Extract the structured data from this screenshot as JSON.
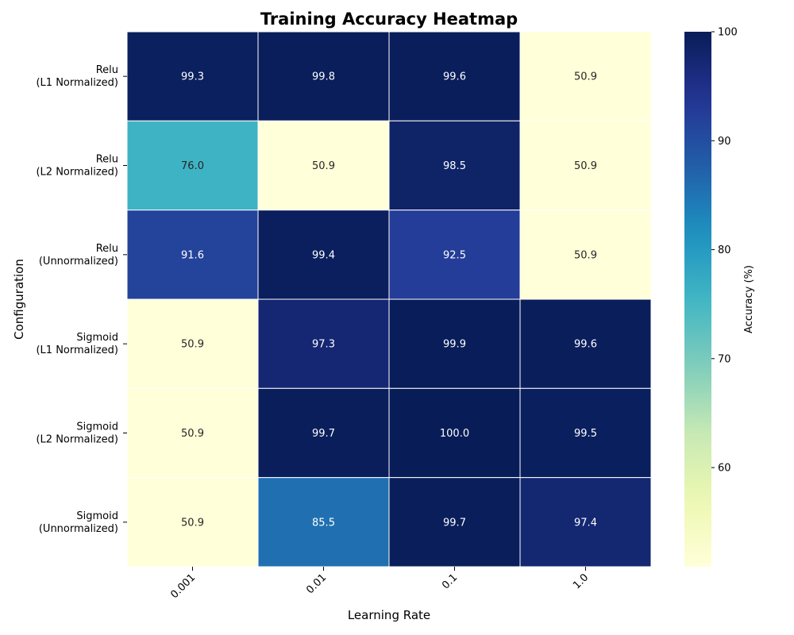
{
  "chart_data": {
    "type": "heatmap",
    "title": "Training Accuracy Heatmap",
    "xlabel": "Learning Rate",
    "ylabel": "Configuration",
    "x_categories": [
      "0.001",
      "0.01",
      "0.1",
      "1.0"
    ],
    "y_categories": [
      [
        "Relu",
        "(L1 Normalized)"
      ],
      [
        "Relu",
        "(L2 Normalized)"
      ],
      [
        "Relu",
        "(Unnormalized)"
      ],
      [
        "Sigmoid",
        "(L1 Normalized)"
      ],
      [
        "Sigmoid",
        "(L2 Normalized)"
      ],
      [
        "Sigmoid",
        "(Unnormalized)"
      ]
    ],
    "values": [
      [
        99.3,
        99.8,
        99.6,
        50.9
      ],
      [
        76.0,
        50.9,
        98.5,
        50.9
      ],
      [
        91.6,
        99.4,
        92.5,
        50.9
      ],
      [
        50.9,
        97.3,
        99.9,
        99.6
      ],
      [
        50.9,
        99.7,
        100.0,
        99.5
      ],
      [
        50.9,
        85.5,
        99.7,
        97.4
      ]
    ],
    "colorbar": {
      "label": "Accuracy (%)",
      "vmin": 50.9,
      "vmax": 100,
      "ticks": [
        60,
        70,
        80,
        90,
        100
      ],
      "colormap": "YlGnBu"
    },
    "value_format_decimals": 1
  }
}
